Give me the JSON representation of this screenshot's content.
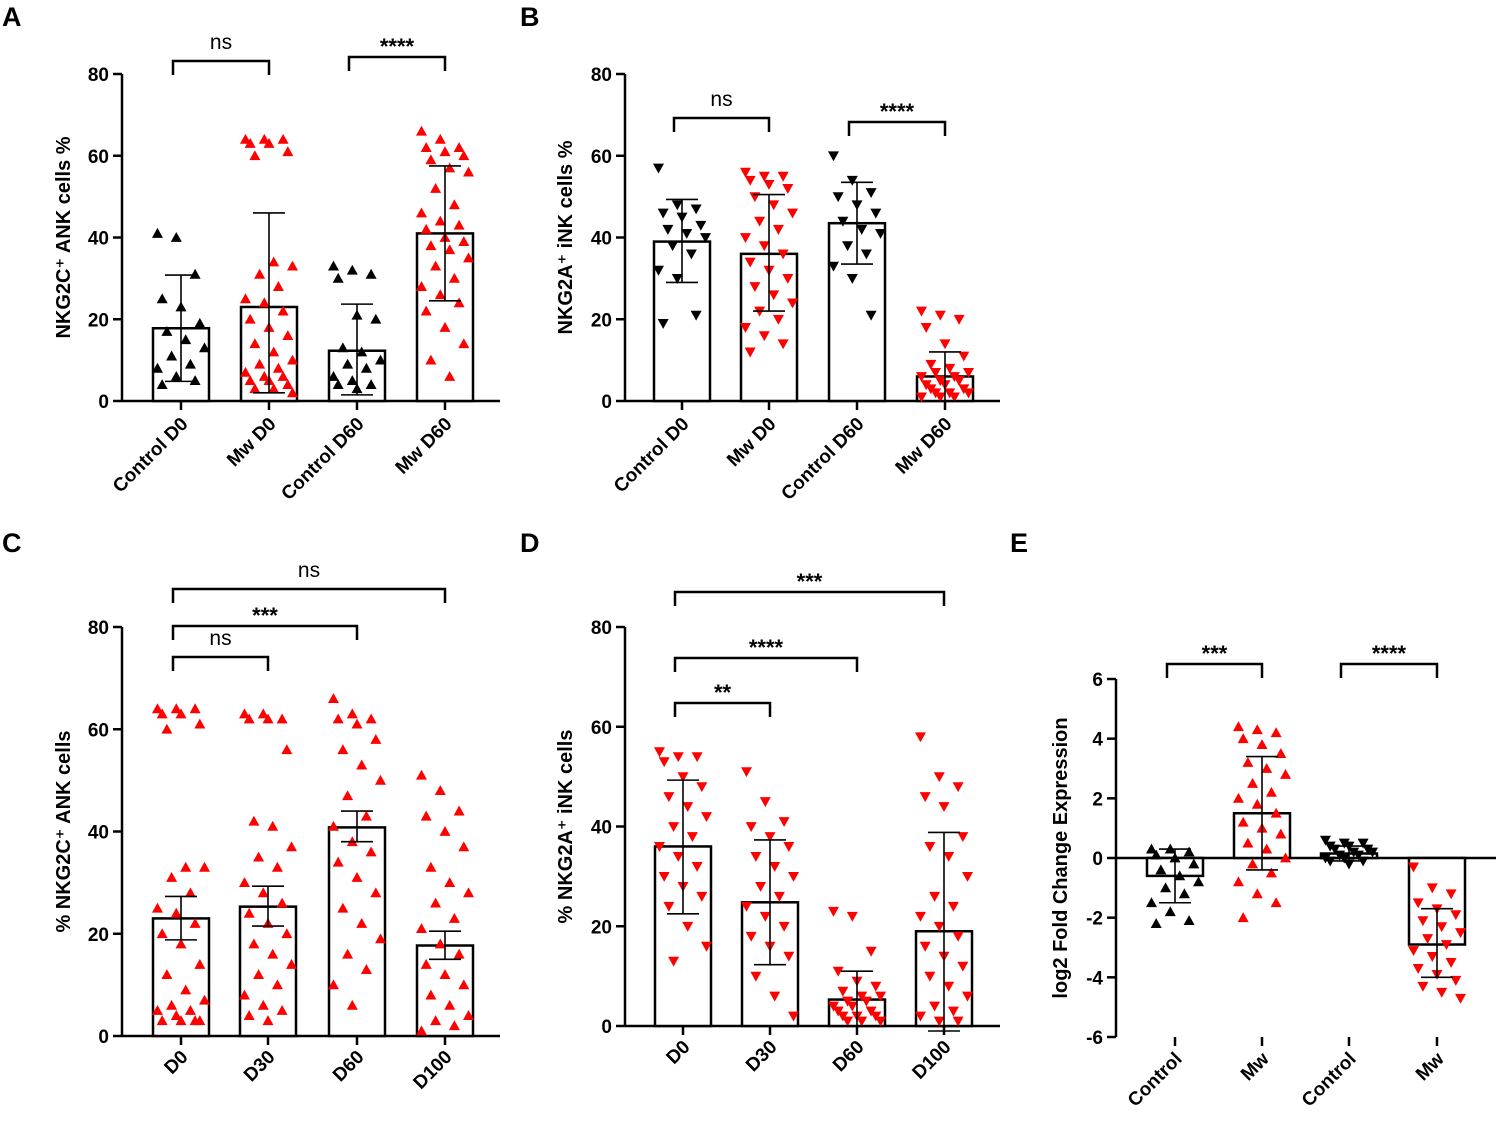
{
  "colors": {
    "control": "#000000",
    "mw": "#ff0000"
  },
  "chart_data": [
    {
      "panel": "A",
      "type": "bar",
      "ylabel": "NKG2C⁺ ANK cells %",
      "ylim": [
        0,
        80
      ],
      "yticks": [
        "0",
        "20",
        "40",
        "60",
        "80"
      ],
      "categories": [
        "Control D0",
        "Mw D0",
        "Control D60",
        "Mw D60"
      ],
      "bars": [
        {
          "mean": 17.8,
          "sd_low": 4.8,
          "sd_high": 30.8,
          "marker": "up",
          "color": "control",
          "points": [
            41,
            40,
            31,
            25,
            23,
            19,
            17,
            15,
            13,
            11,
            9,
            8,
            6,
            5,
            4
          ]
        },
        {
          "mean": 23.0,
          "sd_low": 2,
          "sd_high": 46,
          "marker": "up",
          "color": "mw",
          "points": [
            64,
            64,
            64,
            63,
            63,
            61,
            60,
            34,
            33,
            31,
            28,
            25,
            24,
            22,
            20,
            18,
            16,
            14,
            12,
            10,
            9,
            8,
            7,
            6,
            6,
            5,
            5,
            4,
            3,
            3,
            2
          ]
        },
        {
          "mean": 12.3,
          "sd_low": 1.5,
          "sd_high": 23.7,
          "marker": "up",
          "color": "control",
          "points": [
            33,
            32,
            31,
            30,
            21,
            20,
            13,
            12,
            10,
            9,
            8,
            6,
            5,
            4,
            4,
            3
          ]
        },
        {
          "mean": 41.0,
          "sd_low": 24.5,
          "sd_high": 57.5,
          "marker": "up",
          "color": "mw",
          "points": [
            66,
            64,
            62,
            62,
            61,
            60,
            59,
            57,
            56,
            52,
            48,
            46,
            44,
            43,
            42,
            40,
            39,
            38,
            37,
            35,
            33,
            30,
            28,
            26,
            24,
            22,
            18,
            14,
            10,
            6
          ]
        }
      ],
      "comparisons": [
        {
          "from": 0,
          "to": 1,
          "label": "ns"
        },
        {
          "from": 2,
          "to": 3,
          "label": "****"
        }
      ]
    },
    {
      "panel": "B",
      "type": "bar",
      "ylabel": "NKG2A⁺ iNK cells %",
      "ylim": [
        0,
        80
      ],
      "yticks": [
        "0",
        "20",
        "40",
        "60",
        "80"
      ],
      "categories": [
        "Control D0",
        "Mw D0",
        "Control D60",
        "Mw D60"
      ],
      "bars": [
        {
          "mean": 39.0,
          "sd_low": 29,
          "sd_high": 49.3,
          "marker": "down",
          "color": "control",
          "points": [
            57,
            48,
            47,
            46,
            45,
            43,
            42,
            41,
            40,
            38,
            36,
            32,
            30,
            21,
            19
          ]
        },
        {
          "mean": 36.0,
          "sd_low": 22,
          "sd_high": 50.5,
          "marker": "down",
          "color": "mw",
          "points": [
            56,
            55,
            55,
            54,
            53,
            52,
            50,
            48,
            46,
            44,
            42,
            40,
            38,
            36,
            34,
            32,
            30,
            28,
            26,
            24,
            22,
            20,
            18,
            16,
            14,
            12
          ]
        },
        {
          "mean": 43.5,
          "sd_low": 33.5,
          "sd_high": 53.5,
          "marker": "down",
          "color": "control",
          "points": [
            60,
            54,
            51,
            50,
            48,
            46,
            44,
            42,
            41,
            38,
            36,
            33,
            30,
            21
          ]
        },
        {
          "mean": 6.0,
          "sd_low": 0,
          "sd_high": 12,
          "marker": "down",
          "color": "mw",
          "points": [
            22,
            21,
            20,
            18,
            14,
            11,
            9,
            8,
            7,
            7,
            6,
            6,
            5,
            5,
            4,
            4,
            3,
            3,
            2,
            2,
            2,
            1,
            1,
            1
          ]
        }
      ],
      "comparisons": [
        {
          "from": 0,
          "to": 1,
          "label": "ns"
        },
        {
          "from": 2,
          "to": 3,
          "label": "****"
        }
      ]
    },
    {
      "panel": "C",
      "type": "bar",
      "ylabel": "% NKG2C⁺ ANK cells",
      "ylim": [
        0,
        80
      ],
      "yticks": [
        "0",
        "20",
        "40",
        "60",
        "80"
      ],
      "categories": [
        "D0",
        "D30",
        "D60",
        "D100"
      ],
      "bars": [
        {
          "mean": 23.0,
          "sd_low": 18.8,
          "sd_high": 27.3,
          "marker": "up",
          "color": "mw",
          "points": [
            64,
            64,
            64,
            63,
            63,
            61,
            60,
            33,
            33,
            31,
            28,
            25,
            24,
            22,
            20,
            18,
            14,
            12,
            9,
            7,
            6,
            5,
            5,
            4,
            3,
            3,
            3,
            3
          ]
        },
        {
          "mean": 25.3,
          "sd_low": 21.5,
          "sd_high": 29.3,
          "marker": "up",
          "color": "mw",
          "points": [
            63,
            63,
            62,
            62,
            62,
            56,
            42,
            41,
            37,
            35,
            33,
            30,
            28,
            26,
            24,
            22,
            20,
            18,
            16,
            14,
            12,
            10,
            8,
            6,
            5,
            4,
            3
          ]
        },
        {
          "mean": 40.8,
          "sd_low": 38,
          "sd_high": 44,
          "marker": "up",
          "color": "mw",
          "points": [
            66,
            63,
            62,
            62,
            61,
            58,
            56,
            53,
            50,
            47,
            43,
            41,
            38,
            36,
            34,
            31,
            28,
            25,
            22,
            19,
            16,
            13,
            10,
            6
          ]
        },
        {
          "mean": 17.7,
          "sd_low": 15,
          "sd_high": 20.5,
          "marker": "up",
          "color": "mw",
          "points": [
            51,
            48,
            44,
            43,
            40,
            37,
            33,
            30,
            28,
            26,
            23,
            21,
            18,
            16,
            14,
            12,
            10,
            8,
            6,
            4,
            3,
            2,
            1
          ]
        }
      ],
      "comparisons": [
        {
          "from": 0,
          "to": 1,
          "label": "ns",
          "level": 0
        },
        {
          "from": 0,
          "to": 2,
          "label": "***",
          "level": 1
        },
        {
          "from": 0,
          "to": 3,
          "label": "ns",
          "level": 2
        }
      ]
    },
    {
      "panel": "D",
      "type": "bar",
      "ylabel": "% NKG2A⁺ iNK cells",
      "ylim": [
        0,
        80
      ],
      "yticks": [
        "0",
        "20",
        "40",
        "60",
        "80"
      ],
      "categories": [
        "D0",
        "D30",
        "D60",
        "D100"
      ],
      "bars": [
        {
          "mean": 36.0,
          "sd_low": 22.5,
          "sd_high": 49.3,
          "marker": "down",
          "color": "mw",
          "points": [
            55,
            54,
            54,
            53,
            50,
            48,
            46,
            44,
            42,
            40,
            38,
            36,
            34,
            32,
            30,
            28,
            26,
            24,
            20,
            16,
            13
          ]
        },
        {
          "mean": 24.8,
          "sd_low": 12.3,
          "sd_high": 37.3,
          "marker": "down",
          "color": "mw",
          "points": [
            51,
            45,
            41,
            40,
            38,
            36,
            34,
            32,
            30,
            28,
            26,
            24,
            22,
            20,
            18,
            16,
            14,
            10,
            6,
            2
          ]
        },
        {
          "mean": 5.3,
          "sd_low": 0,
          "sd_high": 11,
          "marker": "down",
          "color": "mw",
          "points": [
            23,
            22,
            15,
            11,
            9,
            8,
            7,
            6,
            6,
            5,
            5,
            4,
            4,
            3,
            3,
            2,
            2,
            2,
            1,
            1,
            1
          ]
        },
        {
          "mean": 19.0,
          "sd_low": -1,
          "sd_high": 38.8,
          "marker": "down",
          "color": "mw",
          "points": [
            58,
            50,
            48,
            46,
            44,
            38,
            36,
            34,
            30,
            26,
            24,
            22,
            20,
            18,
            16,
            14,
            12,
            10,
            8,
            6,
            4,
            3,
            2,
            1,
            1
          ]
        }
      ],
      "comparisons": [
        {
          "from": 0,
          "to": 1,
          "label": "**",
          "level": 0
        },
        {
          "from": 0,
          "to": 2,
          "label": "****",
          "level": 1
        },
        {
          "from": 0,
          "to": 3,
          "label": "***",
          "level": 2
        }
      ]
    },
    {
      "panel": "E",
      "type": "bar",
      "ylabel": "log2 Fold Change Expression",
      "ylim": [
        -6,
        6
      ],
      "yticks": [
        "-6",
        "-4",
        "-2",
        "0",
        "2",
        "4",
        "6"
      ],
      "categories": [
        "Control",
        "Mw",
        "Control",
        "Mw"
      ],
      "bars": [
        {
          "mean": -0.6,
          "sd_low": -1.5,
          "sd_high": 0.3,
          "marker": "up",
          "color": "control",
          "points": [
            0.3,
            0.3,
            0.2,
            0.1,
            0.0,
            -0.2,
            -0.4,
            -0.6,
            -0.8,
            -1.0,
            -1.2,
            -1.5,
            -1.8,
            -2.1,
            -2.2
          ]
        },
        {
          "mean": 1.5,
          "sd_low": -0.4,
          "sd_high": 3.4,
          "marker": "up",
          "color": "mw",
          "points": [
            4.4,
            4.3,
            4.2,
            4.0,
            3.8,
            3.5,
            3.2,
            3.0,
            2.8,
            2.5,
            2.2,
            2.0,
            1.8,
            1.5,
            1.2,
            1.0,
            0.8,
            0.5,
            0.3,
            0.0,
            -0.2,
            -0.5,
            -0.8,
            -1.2,
            -1.5,
            -2.0
          ]
        },
        {
          "mean": 0.15,
          "sd_low": -0.1,
          "sd_high": 0.4,
          "marker": "down",
          "color": "control",
          "points": [
            0.6,
            0.5,
            0.5,
            0.4,
            0.4,
            0.3,
            0.3,
            0.2,
            0.2,
            0.1,
            0.1,
            0.0,
            0.0,
            -0.1,
            -0.1,
            -0.2
          ]
        },
        {
          "mean": -2.9,
          "sd_low": -4.0,
          "sd_high": -1.7,
          "marker": "down",
          "color": "mw",
          "points": [
            -0.3,
            -1.0,
            -1.2,
            -1.5,
            -1.7,
            -1.9,
            -2.1,
            -2.3,
            -2.5,
            -2.7,
            -2.9,
            -3.1,
            -3.3,
            -3.5,
            -3.7,
            -3.9,
            -4.1,
            -4.3,
            -4.5,
            -4.7
          ]
        }
      ],
      "comparisons": [
        {
          "from": 0,
          "to": 1,
          "label": "***"
        },
        {
          "from": 2,
          "to": 3,
          "label": "****"
        }
      ]
    }
  ]
}
